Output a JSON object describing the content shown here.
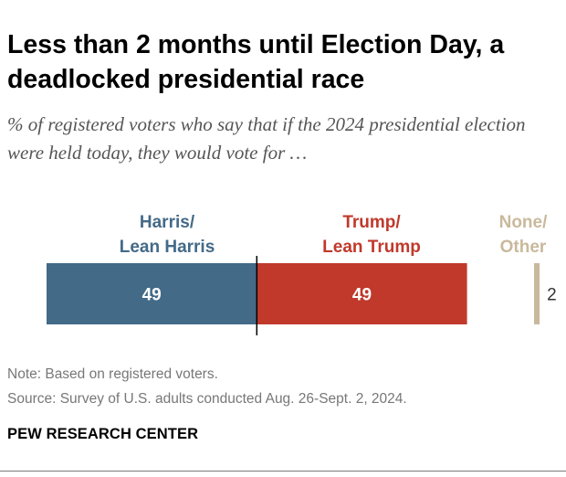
{
  "title": "Less than 2 months until Election Day, a deadlocked presidential race",
  "subtitle": "% of registered voters who say that if the 2024 presidential election were held today, they would vote for …",
  "chart_data": {
    "type": "bar",
    "orientation": "horizontal-stacked",
    "categories": [
      {
        "label_line1": "Harris/",
        "label_line2": "Lean Harris",
        "value": 49,
        "color": "#436a87",
        "value_label": "49"
      },
      {
        "label_line1": "Trump/",
        "label_line2": "Lean Trump",
        "value": 49,
        "color": "#c0392b",
        "value_label": "49"
      },
      {
        "label_line1": "None/",
        "label_line2": "Other",
        "value": 2,
        "color": "#c9b99c",
        "value_label": "2"
      }
    ],
    "midline": true
  },
  "colors": {
    "harris": "#436a87",
    "trump": "#c0392b",
    "other": "#c9b99c",
    "value_text_on_bar": "#ffffff",
    "value_text_outside": "#333333"
  },
  "note": "Note: Based on registered voters.",
  "source": "Source: Survey of U.S. adults conducted Aug. 26-Sept. 2, 2024.",
  "brand": "PEW RESEARCH CENTER"
}
